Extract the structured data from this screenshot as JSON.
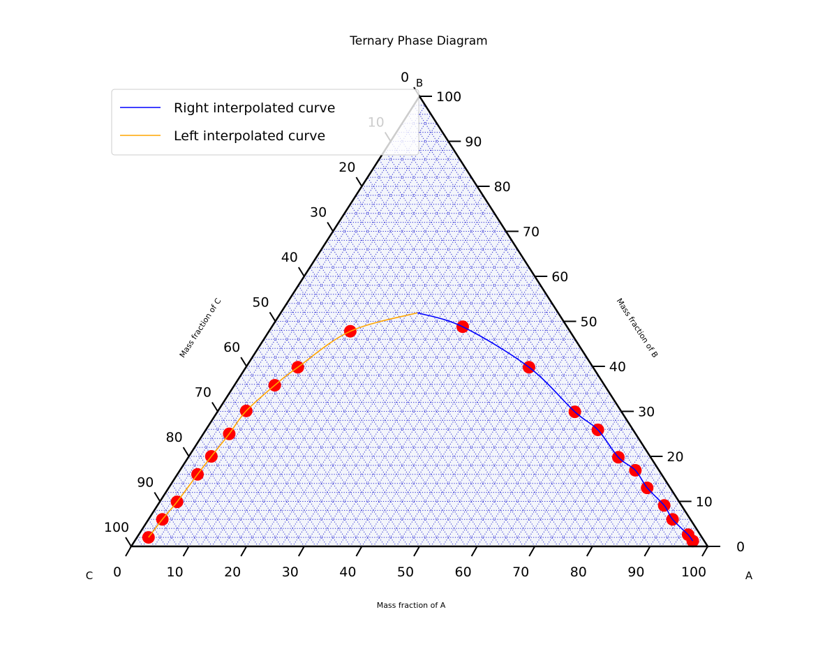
{
  "chart_data": {
    "type": "scatter",
    "subtype": "ternary",
    "title": "Ternary Phase Diagram",
    "axes": {
      "A": {
        "corner_label": "A",
        "label": "Mass fraction of A",
        "ticks": [
          0,
          10,
          20,
          30,
          40,
          50,
          60,
          70,
          80,
          90,
          100
        ]
      },
      "B": {
        "corner_label": "B",
        "label": "Mass fraction of B",
        "ticks": [
          0,
          10,
          20,
          30,
          40,
          50,
          60,
          70,
          80,
          90,
          100
        ]
      },
      "C": {
        "corner_label": "C",
        "label": "Mass fraction of C",
        "ticks": [
          0,
          10,
          20,
          30,
          40,
          50,
          60,
          70,
          80,
          90,
          100
        ]
      }
    },
    "grid": true,
    "grid_step": 2,
    "legend_position": "top-left",
    "colors": {
      "points": "#ff0000",
      "right_curve": "#0000ff",
      "left_curve": "#ffa500",
      "grid": "#0000cc",
      "fill": "#f3f5fb"
    },
    "series": [
      {
        "name": "Left interpolated curve",
        "color": "#ffa500",
        "points": [
          [
            2,
            2
          ],
          [
            2.4,
            6
          ],
          [
            3,
            9.9
          ],
          [
            3.5,
            16
          ],
          [
            3.9,
            20
          ],
          [
            4.5,
            25
          ],
          [
            4.9,
            30.1
          ],
          [
            7,
            35.8
          ],
          [
            9,
            39.8
          ],
          [
            14.1,
            47.8
          ],
          [
            23.7,
            51.9
          ]
        ]
      },
      {
        "name": "Right interpolated curve",
        "color": "#0000ff",
        "points": [
          [
            23.7,
            51.9
          ],
          [
            33.1,
            48.8
          ],
          [
            49.1,
            39.8
          ],
          [
            62,
            29.9
          ],
          [
            68,
            25.9
          ],
          [
            74.6,
            19.8
          ],
          [
            79,
            16.9
          ],
          [
            83,
            13
          ],
          [
            87.9,
            9.1
          ],
          [
            90.9,
            6
          ],
          [
            95.3,
            2.6
          ],
          [
            96.8,
            1.2
          ]
        ]
      }
    ],
    "scatter_points_AB": [
      [
        2,
        2
      ],
      [
        2.4,
        6
      ],
      [
        3,
        9.9
      ],
      [
        3.5,
        16
      ],
      [
        3.9,
        20
      ],
      [
        4.5,
        25
      ],
      [
        4.9,
        30.1
      ],
      [
        7,
        35.8
      ],
      [
        9,
        39.8
      ],
      [
        14.1,
        47.8
      ],
      [
        33.1,
        48.8
      ],
      [
        49.1,
        39.8
      ],
      [
        62,
        29.9
      ],
      [
        68,
        25.9
      ],
      [
        74.6,
        19.8
      ],
      [
        79,
        16.9
      ],
      [
        83,
        13
      ],
      [
        87.9,
        9.1
      ],
      [
        90.9,
        6
      ],
      [
        95.3,
        2.6
      ],
      [
        96.8,
        1.2
      ]
    ]
  }
}
